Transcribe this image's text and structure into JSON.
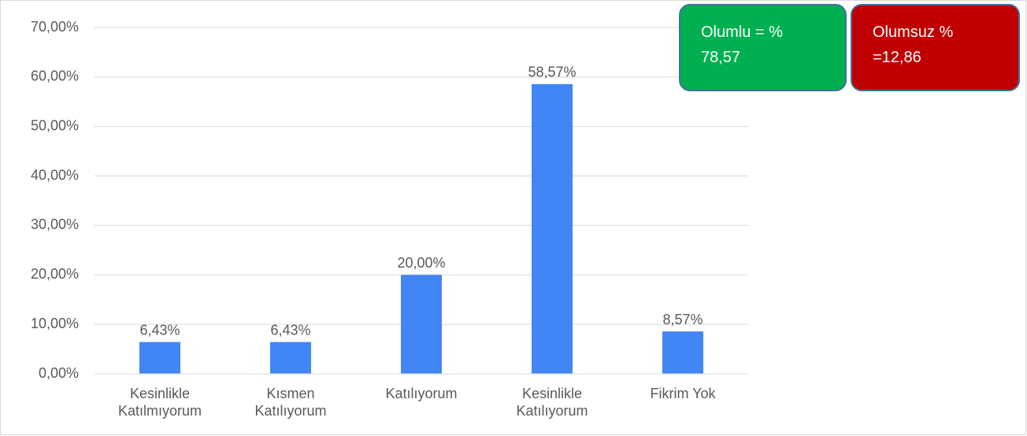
{
  "chart_data": {
    "type": "bar",
    "categories": [
      "Kesinlikle Katılmıyorum",
      "Kısmen Katılıyorum",
      "Katılıyorum",
      "Kesinlikle Katılıyorum",
      "Fikrim Yok"
    ],
    "values": [
      6.43,
      6.43,
      20,
      58.57,
      8.57
    ],
    "value_labels": [
      "6,43%",
      "6,43%",
      "20,00%",
      "58,57%",
      "8,57%"
    ],
    "color": "#4285f4",
    "ylim": [
      0,
      70
    ],
    "yticks": [
      {
        "value": 0,
        "label": "0,00%"
      },
      {
        "value": 10,
        "label": "10,00%"
      },
      {
        "value": 20,
        "label": "20,00%"
      },
      {
        "value": 30,
        "label": "30,00%"
      },
      {
        "value": 40,
        "label": "40,00%"
      },
      {
        "value": 50,
        "label": "50,00%"
      },
      {
        "value": 60,
        "label": "60,00%"
      },
      {
        "value": 70,
        "label": "70,00%"
      }
    ],
    "grid": true,
    "annotations": [
      {
        "text": "Olumlu = % 78,57",
        "color": "#00b050"
      },
      {
        "text": "Olumsuz % =12,86",
        "color": "#c00000"
      }
    ]
  }
}
